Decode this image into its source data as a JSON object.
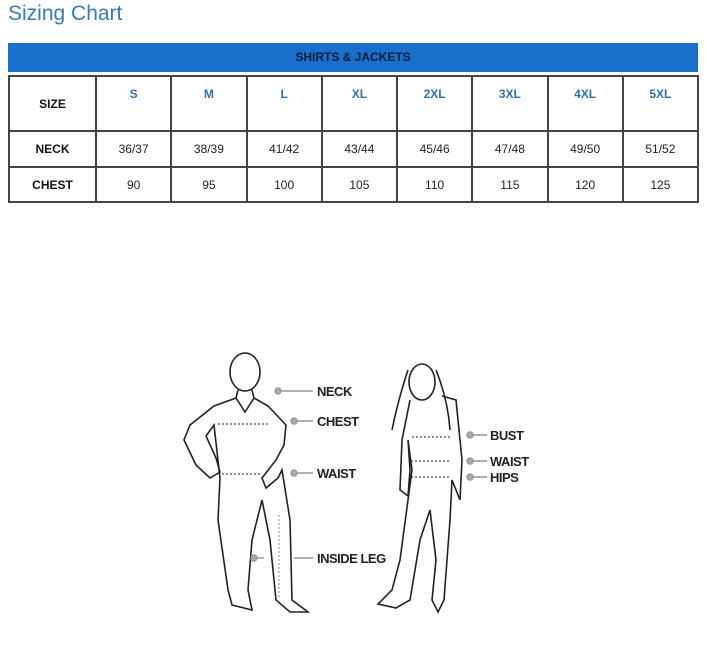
{
  "title": "Sizing Chart",
  "table": {
    "section": "SHIRTS & JACKETS",
    "header": "SIZE",
    "sizes": [
      "S",
      "M",
      "L",
      "XL",
      "2XL",
      "3XL",
      "4XL",
      "5XL"
    ],
    "rows": [
      {
        "label": "NECK",
        "values": [
          "36/37",
          "38/39",
          "41/42",
          "43/44",
          "45/46",
          "47/48",
          "49/50",
          "51/52"
        ]
      },
      {
        "label": "CHEST",
        "values": [
          "90",
          "95",
          "100",
          "105",
          "110",
          "115",
          "120",
          "125"
        ]
      }
    ]
  },
  "diagram": {
    "male_labels": [
      "NECK",
      "CHEST",
      "WAIST",
      "INSIDE LEG"
    ],
    "female_labels": [
      "BUST",
      "WAIST",
      "HIPS"
    ]
  }
}
